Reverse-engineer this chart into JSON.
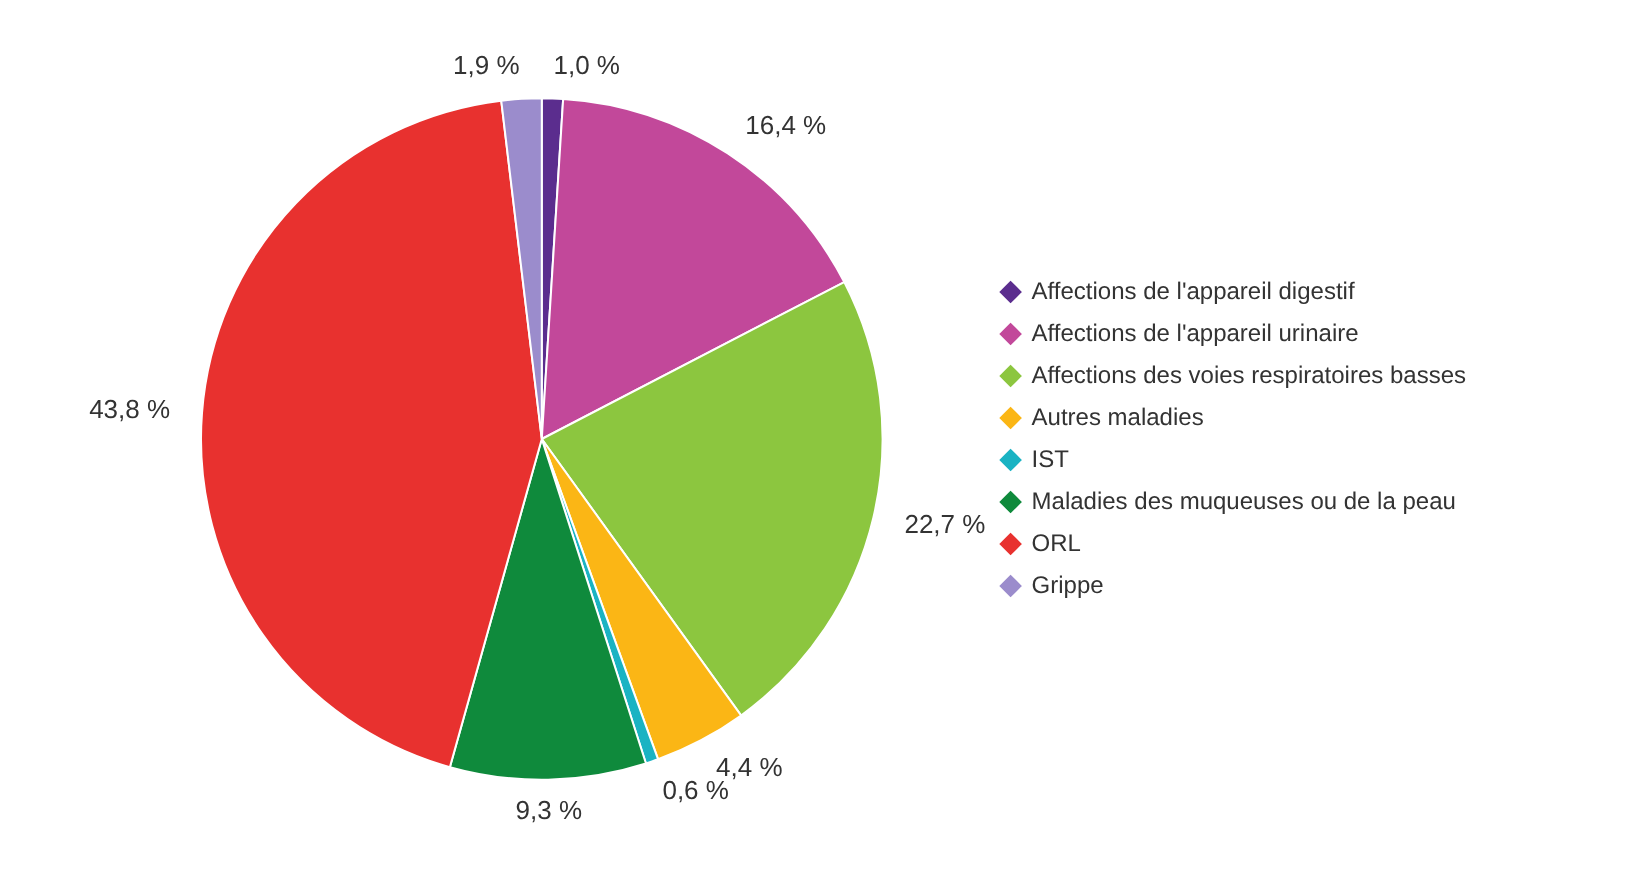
{
  "chart_data": {
    "type": "pie",
    "categories": [
      "Affections de l'appareil digestif",
      "Affections de l'appareil urinaire",
      "Affections des voies respiratoires basses",
      "Autres maladies",
      "IST",
      "Maladies des muqueuses ou de la peau",
      "ORL",
      "Grippe"
    ],
    "values": [
      1.0,
      16.4,
      22.7,
      4.4,
      0.6,
      9.3,
      43.8,
      1.9
    ],
    "value_labels": [
      "1,0 %",
      "16,4 %",
      "22,7 %",
      "4,4 %",
      "0,6 %",
      "9,3 %",
      "43,8 %",
      "1,9 %"
    ],
    "colors": [
      "#5b2d8e",
      "#c2489a",
      "#8cc63f",
      "#fbb615",
      "#1ab3c3",
      "#0f8a3c",
      "#e8312f",
      "#9b8ccc"
    ],
    "legend": "right",
    "marker": "diamond"
  }
}
